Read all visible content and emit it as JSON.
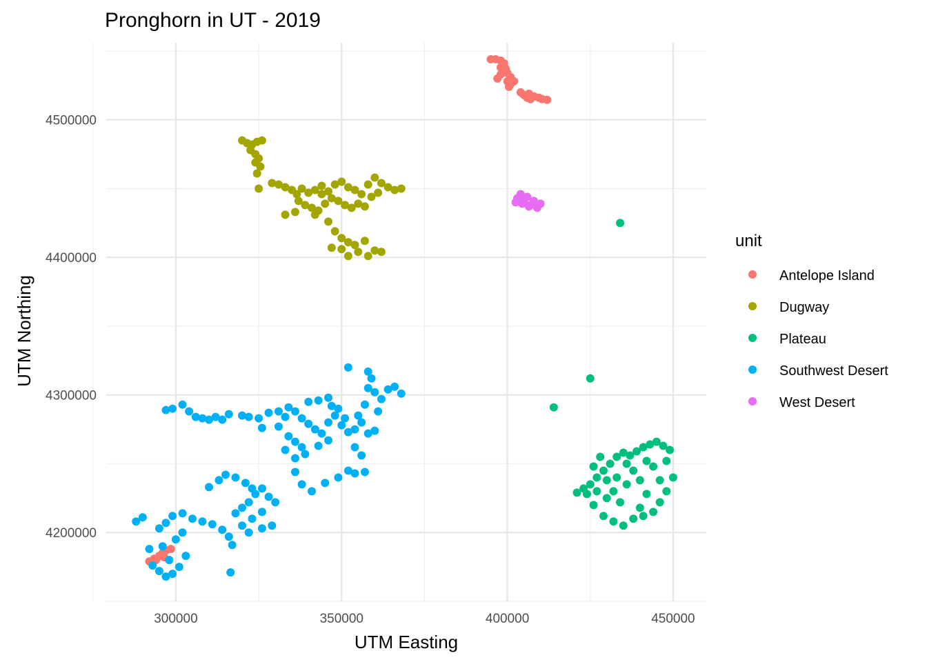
{
  "chart_data": {
    "type": "scatter",
    "title": "Pronghorn in UT - 2019",
    "xlabel": "UTM Easting",
    "ylabel": "UTM Northing",
    "xlim": [
      279000,
      460000
    ],
    "ylim": [
      4150000,
      4556000
    ],
    "x_ticks": [
      300000,
      350000,
      400000,
      450000
    ],
    "x_tick_labels": [
      "300000",
      "350000",
      "400000",
      "450000"
    ],
    "y_ticks": [
      4200000,
      4300000,
      4400000,
      4500000
    ],
    "y_tick_labels": [
      "4200000",
      "4300000",
      "4400000",
      "4500000"
    ],
    "grid": true,
    "legend": {
      "title": "unit",
      "position": "right",
      "entries": [
        "Antelope Island",
        "Dugway",
        "Plateau",
        "Southwest Desert",
        "West Desert"
      ]
    },
    "series": [
      {
        "name": "Antelope Island",
        "color": "#F8766D",
        "points": [
          [
            395000,
            4544000
          ],
          [
            396500,
            4544000
          ],
          [
            398000,
            4543000
          ],
          [
            399000,
            4541000
          ],
          [
            398000,
            4538000
          ],
          [
            399500,
            4537000
          ],
          [
            400000,
            4534000
          ],
          [
            401000,
            4531000
          ],
          [
            398000,
            4533000
          ],
          [
            397000,
            4530000
          ],
          [
            400000,
            4528000
          ],
          [
            401000,
            4526000
          ],
          [
            400500,
            4524000
          ],
          [
            402000,
            4528000
          ],
          [
            404000,
            4520000
          ],
          [
            405000,
            4518000
          ],
          [
            406000,
            4516000
          ],
          [
            407000,
            4515000
          ],
          [
            408000,
            4517000
          ],
          [
            409500,
            4516000
          ],
          [
            410500,
            4515000
          ],
          [
            412000,
            4514500
          ],
          [
            406500,
            4519000
          ],
          [
            292000,
            4179000
          ],
          [
            293500,
            4181000
          ],
          [
            295000,
            4183000
          ],
          [
            296000,
            4185000
          ],
          [
            297000,
            4187000
          ],
          [
            298500,
            4188000
          ],
          [
            294000,
            4180000
          ],
          [
            296500,
            4182000
          ]
        ]
      },
      {
        "name": "Dugway",
        "color": "#A3A500",
        "points": [
          [
            320000,
            4485000
          ],
          [
            321500,
            4483000
          ],
          [
            323000,
            4482000
          ],
          [
            324500,
            4484000
          ],
          [
            326000,
            4485000
          ],
          [
            322500,
            4478000
          ],
          [
            324000,
            4475000
          ],
          [
            325000,
            4472000
          ],
          [
            324000,
            4469000
          ],
          [
            325500,
            4466000
          ],
          [
            324500,
            4461000
          ],
          [
            325000,
            4450000
          ],
          [
            329000,
            4454000
          ],
          [
            331000,
            4453000
          ],
          [
            333000,
            4451000
          ],
          [
            335000,
            4449000
          ],
          [
            336500,
            4446000
          ],
          [
            338000,
            4450000
          ],
          [
            340000,
            4447000
          ],
          [
            342000,
            4449000
          ],
          [
            344000,
            4452000
          ],
          [
            346000,
            4448000
          ],
          [
            348000,
            4453000
          ],
          [
            350000,
            4455000
          ],
          [
            352000,
            4451000
          ],
          [
            354000,
            4449000
          ],
          [
            356000,
            4446000
          ],
          [
            358000,
            4453000
          ],
          [
            360000,
            4458000
          ],
          [
            362000,
            4454000
          ],
          [
            364000,
            4451000
          ],
          [
            366000,
            4449000
          ],
          [
            368000,
            4450000
          ],
          [
            337000,
            4441000
          ],
          [
            339000,
            4438000
          ],
          [
            341000,
            4436000
          ],
          [
            343000,
            4434000
          ],
          [
            345000,
            4439000
          ],
          [
            347000,
            4443000
          ],
          [
            349000,
            4441000
          ],
          [
            351000,
            4438000
          ],
          [
            353000,
            4436000
          ],
          [
            355000,
            4439000
          ],
          [
            357000,
            4437000
          ],
          [
            359000,
            4444000
          ],
          [
            333000,
            4431000
          ],
          [
            336000,
            4433000
          ],
          [
            342000,
            4431000
          ],
          [
            346000,
            4426000
          ],
          [
            348000,
            4419000
          ],
          [
            350000,
            4414000
          ],
          [
            352000,
            4411000
          ],
          [
            354000,
            4409000
          ],
          [
            357000,
            4412000
          ],
          [
            360000,
            4405000
          ],
          [
            362000,
            4404000
          ],
          [
            355000,
            4404000
          ],
          [
            352000,
            4401000
          ],
          [
            350000,
            4406000
          ],
          [
            347000,
            4407000
          ],
          [
            358000,
            4401000
          ],
          [
            344000,
            4446000
          ],
          [
            361000,
            4447000
          ]
        ]
      },
      {
        "name": "Plateau",
        "color": "#00BF7D",
        "points": [
          [
            434000,
            4425000
          ],
          [
            425000,
            4312000
          ],
          [
            414000,
            4291000
          ],
          [
            421000,
            4229000
          ],
          [
            423000,
            4232000
          ],
          [
            425000,
            4235000
          ],
          [
            427000,
            4240000
          ],
          [
            429000,
            4245000
          ],
          [
            431000,
            4250000
          ],
          [
            433000,
            4255000
          ],
          [
            435000,
            4258000
          ],
          [
            437000,
            4256000
          ],
          [
            439000,
            4259000
          ],
          [
            441000,
            4262000
          ],
          [
            443000,
            4264000
          ],
          [
            445000,
            4266000
          ],
          [
            447000,
            4263000
          ],
          [
            449000,
            4260000
          ],
          [
            448000,
            4252000
          ],
          [
            450000,
            4240000
          ],
          [
            448000,
            4230000
          ],
          [
            446000,
            4222000
          ],
          [
            444000,
            4215000
          ],
          [
            441000,
            4212000
          ],
          [
            438000,
            4210000
          ],
          [
            435000,
            4205000
          ],
          [
            432000,
            4208000
          ],
          [
            429000,
            4212000
          ],
          [
            426000,
            4220000
          ],
          [
            424000,
            4228000
          ],
          [
            426000,
            4248000
          ],
          [
            428000,
            4255000
          ],
          [
            430000,
            4238000
          ],
          [
            432000,
            4230000
          ],
          [
            434000,
            4222000
          ],
          [
            436000,
            4235000
          ],
          [
            438000,
            4245000
          ],
          [
            440000,
            4238000
          ],
          [
            442000,
            4228000
          ],
          [
            444000,
            4248000
          ],
          [
            446000,
            4238000
          ],
          [
            436000,
            4250000
          ],
          [
            433000,
            4240000
          ],
          [
            430000,
            4225000
          ],
          [
            440000,
            4218000
          ],
          [
            442000,
            4252000
          ],
          [
            427000,
            4230000
          ]
        ]
      },
      {
        "name": "Southwest Desert",
        "color": "#00B0F6",
        "points": [
          [
            288000,
            4208000
          ],
          [
            290000,
            4211000
          ],
          [
            292000,
            4188000
          ],
          [
            293000,
            4176000
          ],
          [
            295000,
            4172000
          ],
          [
            297000,
            4168000
          ],
          [
            299000,
            4170000
          ],
          [
            301000,
            4175000
          ],
          [
            303000,
            4183000
          ],
          [
            298000,
            4180000
          ],
          [
            296000,
            4190000
          ],
          [
            300000,
            4195000
          ],
          [
            302000,
            4200000
          ],
          [
            295000,
            4203000
          ],
          [
            297000,
            4207000
          ],
          [
            299000,
            4212000
          ],
          [
            302000,
            4214000
          ],
          [
            305000,
            4210000
          ],
          [
            308000,
            4208000
          ],
          [
            311000,
            4206000
          ],
          [
            314000,
            4202000
          ],
          [
            316000,
            4197000
          ],
          [
            317000,
            4191000
          ],
          [
            316500,
            4171000
          ],
          [
            318000,
            4214000
          ],
          [
            320000,
            4218000
          ],
          [
            322000,
            4222000
          ],
          [
            324000,
            4228000
          ],
          [
            326000,
            4232000
          ],
          [
            328000,
            4226000
          ],
          [
            330000,
            4222000
          ],
          [
            326000,
            4215000
          ],
          [
            323000,
            4210000
          ],
          [
            320000,
            4205000
          ],
          [
            322000,
            4200000
          ],
          [
            326000,
            4203000
          ],
          [
            329000,
            4205000
          ],
          [
            310000,
            4233000
          ],
          [
            313000,
            4238000
          ],
          [
            315000,
            4242000
          ],
          [
            318000,
            4240000
          ],
          [
            321000,
            4236000
          ],
          [
            323000,
            4232000
          ],
          [
            336000,
            4244000
          ],
          [
            341000,
            4230000
          ],
          [
            345000,
            4236000
          ],
          [
            349000,
            4240000
          ],
          [
            352000,
            4245000
          ],
          [
            354000,
            4243000
          ],
          [
            357000,
            4244000
          ],
          [
            338000,
            4235000
          ],
          [
            297000,
            4289000
          ],
          [
            299000,
            4290000
          ],
          [
            302000,
            4293000
          ],
          [
            304000,
            4288000
          ],
          [
            306000,
            4284000
          ],
          [
            308000,
            4283000
          ],
          [
            310000,
            4282000
          ],
          [
            312000,
            4284000
          ],
          [
            314000,
            4282000
          ],
          [
            316000,
            4286000
          ],
          [
            320000,
            4285000
          ],
          [
            322000,
            4284000
          ],
          [
            325000,
            4283000
          ],
          [
            328000,
            4287000
          ],
          [
            326000,
            4276000
          ],
          [
            331000,
            4277000
          ],
          [
            333000,
            4284000
          ],
          [
            334000,
            4291000
          ],
          [
            336000,
            4288000
          ],
          [
            338000,
            4283000
          ],
          [
            340000,
            4279000
          ],
          [
            342000,
            4275000
          ],
          [
            344000,
            4272000
          ],
          [
            346000,
            4280000
          ],
          [
            348000,
            4285000
          ],
          [
            350000,
            4278000
          ],
          [
            352000,
            4273000
          ],
          [
            354000,
            4275000
          ],
          [
            356000,
            4280000
          ],
          [
            358000,
            4272000
          ],
          [
            360000,
            4274000
          ],
          [
            334000,
            4270000
          ],
          [
            336000,
            4266000
          ],
          [
            338000,
            4262000
          ],
          [
            333000,
            4260000
          ],
          [
            336000,
            4254000
          ],
          [
            339000,
            4257000
          ],
          [
            343000,
            4263000
          ],
          [
            346000,
            4267000
          ],
          [
            340000,
            4295000
          ],
          [
            343000,
            4296000
          ],
          [
            346000,
            4298000
          ],
          [
            349000,
            4290000
          ],
          [
            352000,
            4320000
          ],
          [
            355000,
            4285000
          ],
          [
            357000,
            4293000
          ],
          [
            358000,
            4305000
          ],
          [
            360000,
            4302000
          ],
          [
            362000,
            4297000
          ],
          [
            364000,
            4304000
          ],
          [
            366000,
            4306000
          ],
          [
            368000,
            4301000
          ],
          [
            361000,
            4288000
          ],
          [
            358000,
            4317000
          ],
          [
            359000,
            4312000
          ],
          [
            356000,
            4256000
          ],
          [
            354000,
            4262000
          ],
          [
            331000,
            4288000
          ],
          [
            347000,
            4292000
          ],
          [
            351000,
            4283000
          ]
        ]
      },
      {
        "name": "West Desert",
        "color": "#E76BF3",
        "points": [
          [
            403000,
            4443000
          ],
          [
            404000,
            4446000
          ],
          [
            405000,
            4441000
          ],
          [
            406000,
            4444000
          ],
          [
            407000,
            4438000
          ],
          [
            408000,
            4441000
          ],
          [
            409000,
            4436000
          ],
          [
            410000,
            4439000
          ],
          [
            402500,
            4440000
          ],
          [
            406500,
            4437000
          ],
          [
            404500,
            4439000
          ]
        ]
      }
    ]
  }
}
